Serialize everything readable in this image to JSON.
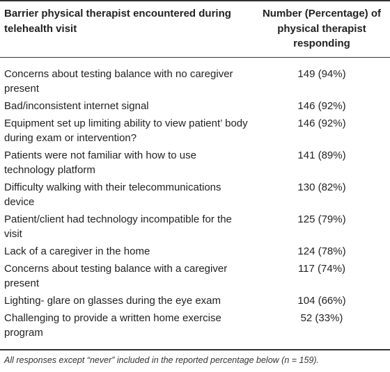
{
  "header": {
    "barrier_label": "Barrier physical therapist encountered during telehealth visit",
    "number_label": "Number (Percentage) of physical therapist responding"
  },
  "rows": [
    {
      "barrier": "Concerns about testing balance with no caregiver present",
      "value": "149 (94%)"
    },
    {
      "barrier": "Bad/inconsistent internet signal",
      "value": "146 (92%)"
    },
    {
      "barrier": "Equipment set up limiting ability to view patient’ body during exam or intervention?",
      "value": "146 (92%)"
    },
    {
      "barrier": "Patients were not familiar with how to use technology platform",
      "value": "141 (89%)"
    },
    {
      "barrier": "Difficulty walking with their telecommunications device",
      "value": "130 (82%)"
    },
    {
      "barrier": "Patient/client had technology incompatible for the visit",
      "value": "125 (79%)"
    },
    {
      "barrier": "Lack of a caregiver in the home",
      "value": "124 (78%)"
    },
    {
      "barrier": "Concerns about testing balance with a caregiver present",
      "value": "117 (74%)"
    },
    {
      "barrier": "Lighting- glare on glasses during the eye exam",
      "value": "104 (66%)"
    },
    {
      "barrier": "Challenging to provide a written home exercise program",
      "value": "52 (33%)"
    }
  ],
  "footnote": "All responses except “never” included in the reported percentage below (n = 159)."
}
